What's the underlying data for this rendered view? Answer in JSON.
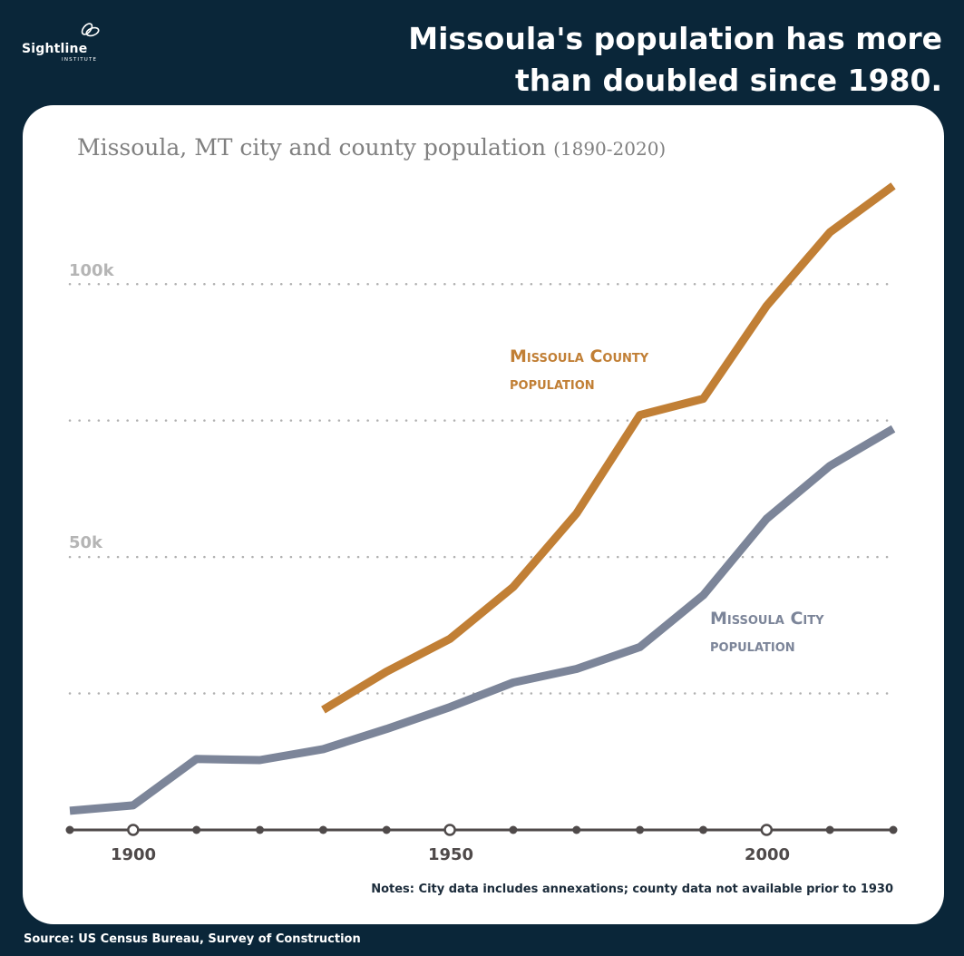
{
  "header": {
    "logo_name": "Sightline",
    "logo_sub": "INSTITUTE",
    "headline_line1": "Missoula's population has more",
    "headline_line2": "than doubled since 1980."
  },
  "chart_data": {
    "type": "line",
    "title": "Missoula, MT city and county population",
    "title_range": "(1890-2020)",
    "x": [
      1890,
      1900,
      1910,
      1920,
      1930,
      1940,
      1950,
      1960,
      1970,
      1980,
      1990,
      2000,
      2010,
      2020
    ],
    "xticks": [
      1900,
      1950,
      2000
    ],
    "xtick_labels": [
      "1900",
      "1950",
      "2000"
    ],
    "xlim": [
      1890,
      2020
    ],
    "ylim": [
      0,
      120000
    ],
    "ytick_labels": [
      {
        "value": 100000,
        "label": "100k"
      },
      {
        "value": 50000,
        "label": "50k"
      }
    ],
    "gridlines": [
      25000,
      50000,
      75000,
      100000
    ],
    "series": [
      {
        "name": "Missoula County population",
        "color": "#c17f35",
        "values": [
          null,
          null,
          null,
          null,
          22000,
          29000,
          35000,
          44500,
          58000,
          76000,
          79000,
          96000,
          109500,
          118000
        ]
      },
      {
        "name": "Missoula City population",
        "color": "#7c8599",
        "values": [
          3500,
          4500,
          13000,
          12800,
          14800,
          18500,
          22500,
          27000,
          29500,
          33500,
          43000,
          57000,
          66700,
          73500
        ]
      }
    ],
    "label_county_line1": "Missoula County",
    "label_county_line2": "population",
    "label_city_line1": "Missoula City",
    "label_city_line2": "population",
    "notes": "Notes: City data includes annexations; county data not available prior to 1930"
  },
  "footer": {
    "source": "Source: US Census Bureau, Survey of Construction"
  },
  "colors": {
    "background": "#0a2639",
    "card": "#ffffff",
    "county": "#c17f35",
    "city": "#7c8599",
    "axis": "#4f4a4a",
    "grid": "#b0b0b0"
  }
}
